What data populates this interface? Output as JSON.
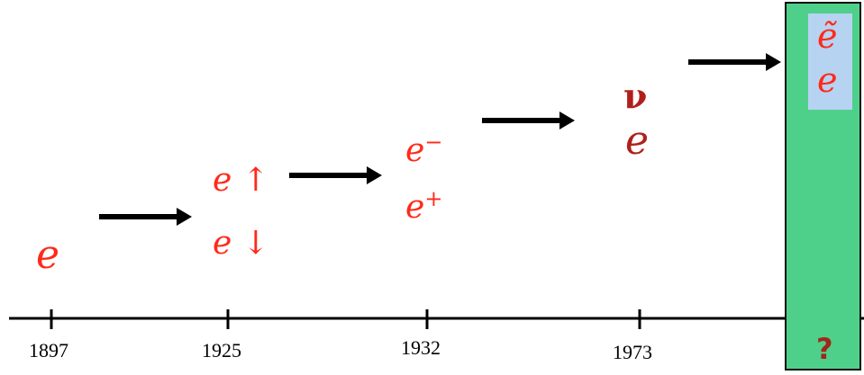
{
  "timeline": {
    "years": [
      "1897",
      "1925",
      "1932",
      "1973"
    ],
    "stage_1897": {
      "symbol": "e"
    },
    "stage_1925": {
      "spin_up": "e ↑",
      "spin_down": "e ↓"
    },
    "stage_1932": {
      "electron": "e",
      "electron_charge": "−",
      "positron": "e",
      "positron_charge": "+"
    },
    "stage_1973": {
      "neutrino": "ν",
      "electron": "e"
    },
    "future": {
      "superpartner": "ẽ",
      "electron": "e",
      "unknown_year": "?"
    }
  },
  "colors": {
    "symbol_red": "#ff2a1a",
    "symbol_dark": "#b0201a",
    "box_green": "#4fd08a",
    "box_blue": "#b7d3f2"
  }
}
